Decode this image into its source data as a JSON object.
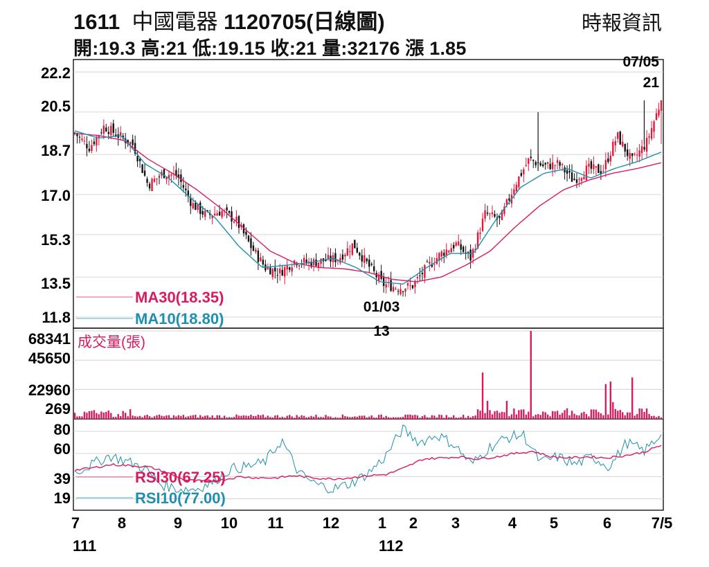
{
  "header": {
    "code": "1611",
    "name": "中國電器",
    "date_part": "1120705(日線圖)",
    "source": "時報資訊",
    "quote_line": "開:19.3 高:21 低:19.15 收:21 量:32176 漲 1.85"
  },
  "chart_data": {
    "type": "candlestick",
    "price_panel": {
      "y_ticks": [
        "22.2",
        "20.5",
        "18.7",
        "17.0",
        "15.3",
        "13.5",
        "11.8"
      ],
      "ylim": [
        11.8,
        22.2
      ],
      "grid": true,
      "legend": [
        "MA30(18.35)",
        "MA10(18.80)"
      ],
      "annotations": [
        {
          "date": "07/05",
          "value": "21",
          "kind": "high"
        },
        {
          "date": "01/03",
          "value": "13",
          "kind": "low"
        }
      ],
      "close_anchors": [
        19.6,
        19.0,
        19.9,
        19.5,
        19.1,
        17.4,
        17.9,
        17.8,
        16.6,
        16.1,
        16.3,
        15.9,
        14.8,
        13.9,
        13.7,
        14.2,
        14.1,
        14.2,
        14.3,
        14.9,
        14.0,
        13.2,
        13.05,
        13.1,
        13.9,
        14.5,
        14.9,
        14.3,
        16.2,
        15.9,
        17.4,
        18.5,
        18.2,
        18.3,
        17.6,
        18.1,
        18.0,
        19.5,
        18.4,
        19.2,
        21.0
      ],
      "ma30_anchors": [
        19.6,
        19.5,
        19.3,
        18.5,
        17.9,
        17.2,
        16.4,
        15.5,
        14.6,
        14.1,
        13.9,
        13.85,
        13.7,
        13.4,
        13.3,
        13.5,
        14.0,
        14.6,
        15.6,
        16.5,
        17.2,
        17.6,
        17.9,
        18.1,
        18.35
      ],
      "ma10_anchors": [
        19.7,
        19.4,
        19.5,
        18.3,
        17.7,
        16.8,
        16.0,
        14.8,
        13.9,
        14.0,
        14.1,
        14.3,
        13.9,
        13.3,
        13.2,
        13.9,
        14.5,
        14.5,
        16.0,
        17.3,
        17.9,
        18.1,
        17.7,
        18.1,
        18.4,
        18.8
      ]
    },
    "volume_panel": {
      "label": "成交量(張)",
      "y_ticks": [
        "68341",
        "45650",
        "22960",
        "269"
      ],
      "ylim": [
        0,
        68341
      ],
      "spikes": [
        {
          "pos": 0.697,
          "value": 36000
        },
        {
          "pos": 0.703,
          "value": 14000
        },
        {
          "pos": 0.738,
          "value": 14000
        },
        {
          "pos": 0.776,
          "value": 68341
        },
        {
          "pos": 0.907,
          "value": 27000
        },
        {
          "pos": 0.912,
          "value": 29000
        },
        {
          "pos": 0.918,
          "value": 13000
        },
        {
          "pos": 0.951,
          "value": 32176
        }
      ]
    },
    "rsi_panel": {
      "y_ticks": [
        "80",
        "60",
        "39",
        "19"
      ],
      "ylim": [
        10,
        90
      ],
      "legend": [
        "RSI30(67.25)",
        "RSI10(77.00)"
      ],
      "rsi30_anchors": [
        45,
        47,
        50,
        49,
        48,
        43,
        36,
        35,
        36,
        39,
        38,
        38,
        40,
        38,
        37,
        38,
        40,
        41,
        47,
        55,
        56,
        57,
        55,
        57,
        60,
        62,
        57,
        56,
        57,
        56,
        58,
        61,
        67.25
      ],
      "rsi10_anchors": [
        43,
        50,
        58,
        53,
        47,
        32,
        28,
        28,
        34,
        46,
        48,
        52,
        72,
        42,
        32,
        28,
        33,
        42,
        57,
        82,
        70,
        77,
        68,
        50,
        65,
        74,
        77,
        52,
        57,
        50,
        57,
        48,
        70,
        62,
        77.0
      ]
    },
    "x_axis": {
      "ticks": [
        "7",
        "8",
        "9",
        "10",
        "11",
        "12",
        "1",
        "2",
        "3",
        "4",
        "5",
        "6",
        "7/5"
      ],
      "year_labels": [
        "111",
        "112"
      ]
    },
    "colors": {
      "up": "#e0193a",
      "down": "#111111",
      "ma30": "#d81b60",
      "ma10": "#1d8fb0",
      "volume": "#d81b60",
      "grid": "#c9c9c9"
    }
  }
}
